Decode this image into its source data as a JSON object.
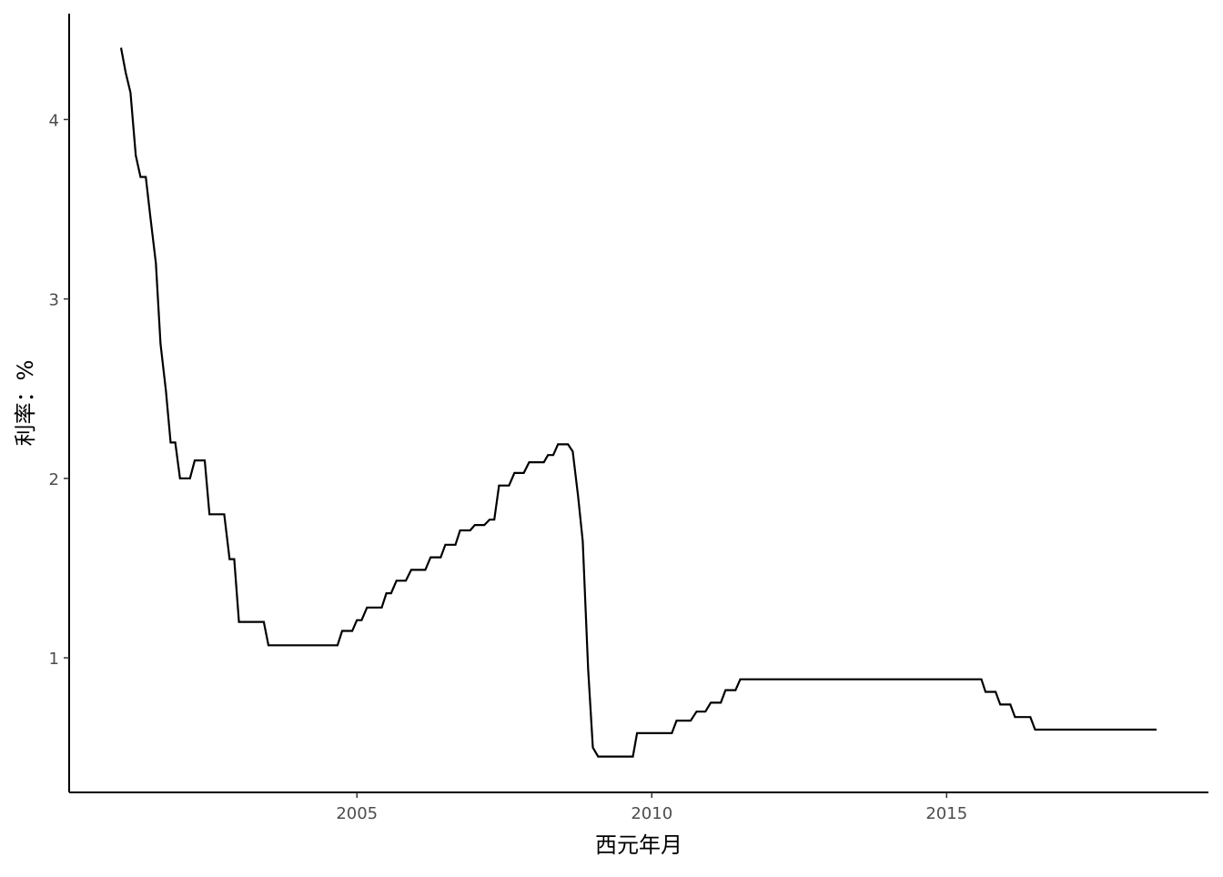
{
  "chart_data": {
    "type": "line",
    "title": "",
    "xlabel": "西元年月",
    "ylabel": "利率：%",
    "xlim": [
      2000.12,
      2019.44
    ],
    "ylim": [
      0.25,
      4.59
    ],
    "xticks": [
      {
        "value": 2005,
        "label": "2005"
      },
      {
        "value": 2010,
        "label": "2010"
      },
      {
        "value": 2015,
        "label": "2015"
      }
    ],
    "yticks": [
      {
        "value": 1,
        "label": "1"
      },
      {
        "value": 2,
        "label": "2"
      },
      {
        "value": 3,
        "label": "3"
      },
      {
        "value": 4,
        "label": "4"
      }
    ],
    "grid": false,
    "line_color": "#000000",
    "series": [
      {
        "x": [
          2001.0,
          2001.08,
          2001.16,
          2001.25,
          2001.33,
          2001.42,
          2001.5,
          2001.59,
          2001.67,
          2001.76,
          2001.84,
          2001.92,
          2002.0,
          2002.17,
          2002.25,
          2002.42,
          2002.5,
          2002.75,
          2002.84,
          2002.92,
          2003.0,
          2003.42,
          2003.5,
          2004.67,
          2004.75,
          2004.92,
          2005.0,
          2005.08,
          2005.17,
          2005.42,
          2005.5,
          2005.58,
          2005.67,
          2005.83,
          2005.92,
          2006.16,
          2006.25,
          2006.42,
          2006.5,
          2006.67,
          2006.75,
          2006.92,
          2007.0,
          2007.16,
          2007.25,
          2007.33,
          2007.41,
          2007.58,
          2007.67,
          2007.83,
          2007.92,
          2008.17,
          2008.24,
          2008.33,
          2008.41,
          2008.58,
          2008.66,
          2008.75,
          2008.83,
          2008.92,
          2009.0,
          2009.09,
          2009.68,
          2009.75,
          2010.34,
          2010.42,
          2010.66,
          2010.76,
          2010.91,
          2011.0,
          2011.17,
          2011.25,
          2011.42,
          2011.5,
          2015.59,
          2015.66,
          2015.83,
          2015.91,
          2016.08,
          2016.16,
          2016.42,
          2016.5,
          2018.56
        ],
        "y": [
          4.4,
          4.26,
          4.15,
          3.8,
          3.68,
          3.68,
          3.45,
          3.2,
          2.75,
          2.49,
          2.2,
          2.2,
          2.0,
          2.0,
          2.1,
          2.1,
          1.8,
          1.8,
          1.55,
          1.55,
          1.2,
          1.2,
          1.07,
          1.07,
          1.15,
          1.15,
          1.21,
          1.21,
          1.28,
          1.28,
          1.36,
          1.36,
          1.43,
          1.43,
          1.49,
          1.49,
          1.56,
          1.56,
          1.63,
          1.63,
          1.71,
          1.71,
          1.74,
          1.74,
          1.77,
          1.77,
          1.96,
          1.96,
          2.03,
          2.03,
          2.09,
          2.09,
          2.13,
          2.13,
          2.19,
          2.19,
          2.15,
          1.9,
          1.65,
          0.94,
          0.5,
          0.45,
          0.45,
          0.58,
          0.58,
          0.65,
          0.65,
          0.7,
          0.7,
          0.75,
          0.75,
          0.82,
          0.82,
          0.88,
          0.88,
          0.81,
          0.81,
          0.74,
          0.74,
          0.67,
          0.67,
          0.6,
          0.6
        ]
      }
    ]
  }
}
